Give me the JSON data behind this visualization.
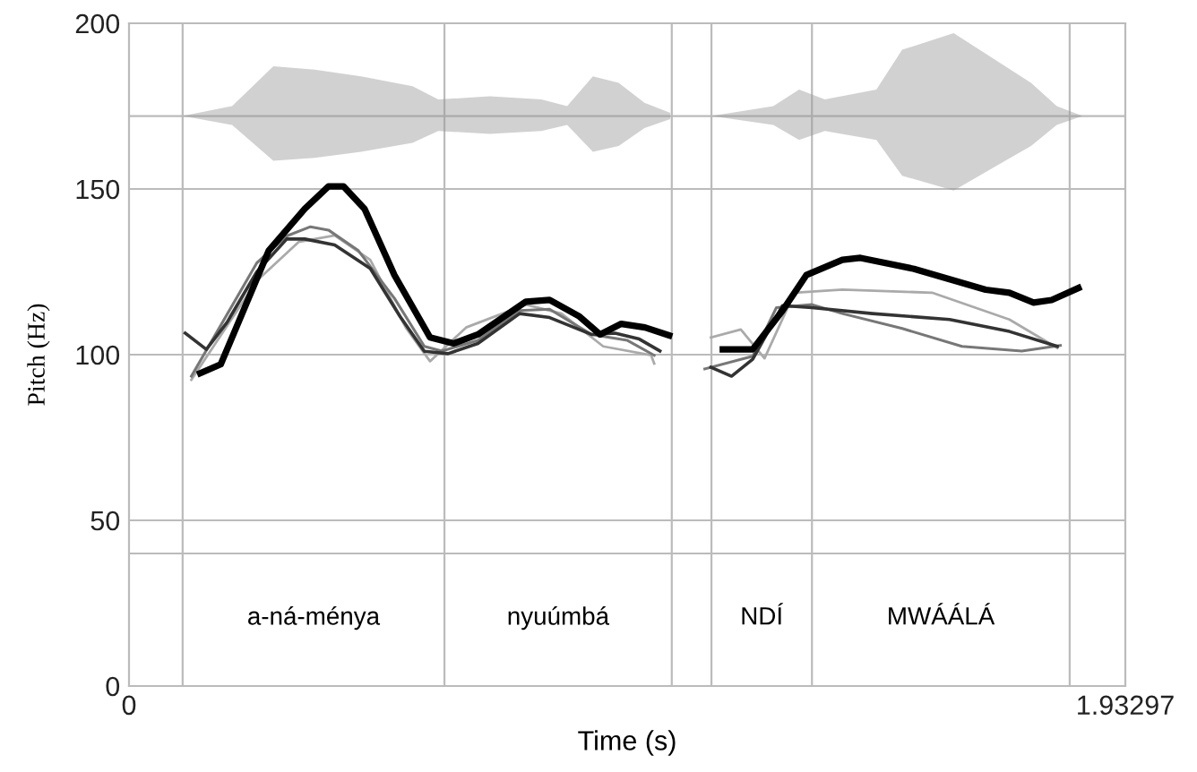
{
  "chart_data": {
    "type": "line",
    "xlabel": "Time (s)",
    "ylabel": "Pitch (Hz)",
    "xlim": [
      0,
      1.93297
    ],
    "xticks": [
      0,
      1.93297
    ],
    "ylim": [
      0,
      200
    ],
    "yticks": [
      0,
      50,
      100,
      150,
      200
    ],
    "grid": "y",
    "legend": false,
    "ref_lines": [
      {
        "axis": "y",
        "value": 40,
        "color": "#bbbbbb"
      },
      {
        "axis": "y",
        "value": 172,
        "color": "#bbbbbb"
      },
      {
        "axis": "x",
        "value": 0.104,
        "color": "#bbbbbb"
      },
      {
        "axis": "x",
        "value": 0.612,
        "color": "#bbbbbb"
      },
      {
        "axis": "x",
        "value": 1.053,
        "color": "#bbbbbb"
      },
      {
        "axis": "x",
        "value": 1.13,
        "color": "#bbbbbb"
      },
      {
        "axis": "x",
        "value": 1.325,
        "color": "#bbbbbb"
      },
      {
        "axis": "x",
        "value": 1.825,
        "color": "#bbbbbb"
      }
    ],
    "annotations": [
      "a-ná-ménya",
      "nyuúmbá",
      "NDÍ",
      "MWÁÁLÁ"
    ],
    "series": [
      {
        "color": "#000000",
        "x": [
          0.138,
          0.178,
          0.271,
          0.341,
          0.387,
          0.416,
          0.457,
          0.515,
          0.584,
          0.63,
          0.677,
          0.77,
          0.816,
          0.874,
          0.914,
          0.955,
          1.001,
          1.048,
          1.09,
          1.152,
          1.21,
          1.268,
          1.314,
          1.384,
          1.419,
          1.523,
          1.662,
          1.708,
          1.755,
          1.79,
          1.842
        ],
        "values": [
          94.4,
          97.1,
          131.4,
          144,
          150.8,
          150.8,
          144,
          124,
          105.2,
          103.4,
          106.1,
          116,
          116.5,
          111.5,
          106.1,
          109.3,
          108.2,
          105.8,
          null,
          101.6,
          101.6,
          113.3,
          124,
          128.6,
          129.2,
          125.9,
          119.6,
          118.7,
          115.7,
          116.5,
          120.1
        ]
      },
      {
        "color": "#333333",
        "x": [
          0.109,
          0.15,
          0.19,
          0.248,
          0.306,
          0.341,
          0.399,
          0.468,
          0.526,
          0.573,
          0.619,
          0.677,
          0.758,
          0.816,
          0.897,
          0.943,
          0.99,
          1.03,
          1.09,
          1.129,
          1.169,
          1.21,
          1.268,
          1.325,
          1.442,
          1.592,
          1.708,
          1.801
        ],
        "values": [
          106.5,
          101.6,
          109.7,
          125,
          134.9,
          134.9,
          133.1,
          126,
          111.5,
          101,
          100.3,
          103.4,
          112.4,
          111.2,
          106.1,
          106.5,
          104.7,
          101.1,
          null,
          96.2,
          93.5,
          98.6,
          114.8,
          114.2,
          112.4,
          110.6,
          107,
          102.5
        ]
      },
      {
        "color": "#777777",
        "x": [
          0.121,
          0.248,
          0.306,
          0.352,
          0.387,
          0.445,
          0.515,
          0.573,
          0.607,
          0.677,
          0.758,
          0.816,
          0.897,
          0.967,
          1.019,
          1.09,
          1.117,
          1.21,
          1.256,
          1.325,
          1.384,
          1.5,
          1.616,
          1.732,
          1.807
        ],
        "values": [
          93.5,
          127.7,
          135.8,
          138.6,
          137.6,
          131.4,
          117,
          102.5,
          101.1,
          104.3,
          113.3,
          113.7,
          106.1,
          104.3,
          99.8,
          null,
          95.7,
          99.5,
          114.2,
          115.1,
          112.4,
          107.9,
          102.5,
          101.1,
          102.8
        ]
      },
      {
        "color": "#aaaaaa",
        "x": [
          0.121,
          0.248,
          0.329,
          0.399,
          0.468,
          0.538,
          0.584,
          0.654,
          0.77,
          0.839,
          0.92,
          1.013,
          1.019,
          1.09,
          1.129,
          1.187,
          1.233,
          1.291,
          1.384,
          1.558,
          1.708,
          1.801
        ],
        "values": [
          92.4,
          122.3,
          134,
          136,
          128.6,
          107.9,
          98,
          108.2,
          115.1,
          112.4,
          102.5,
          99.8,
          97.3,
          null,
          105.2,
          107.6,
          98.9,
          118.7,
          119.6,
          118.7,
          110.6,
          102
        ]
      }
    ]
  }
}
